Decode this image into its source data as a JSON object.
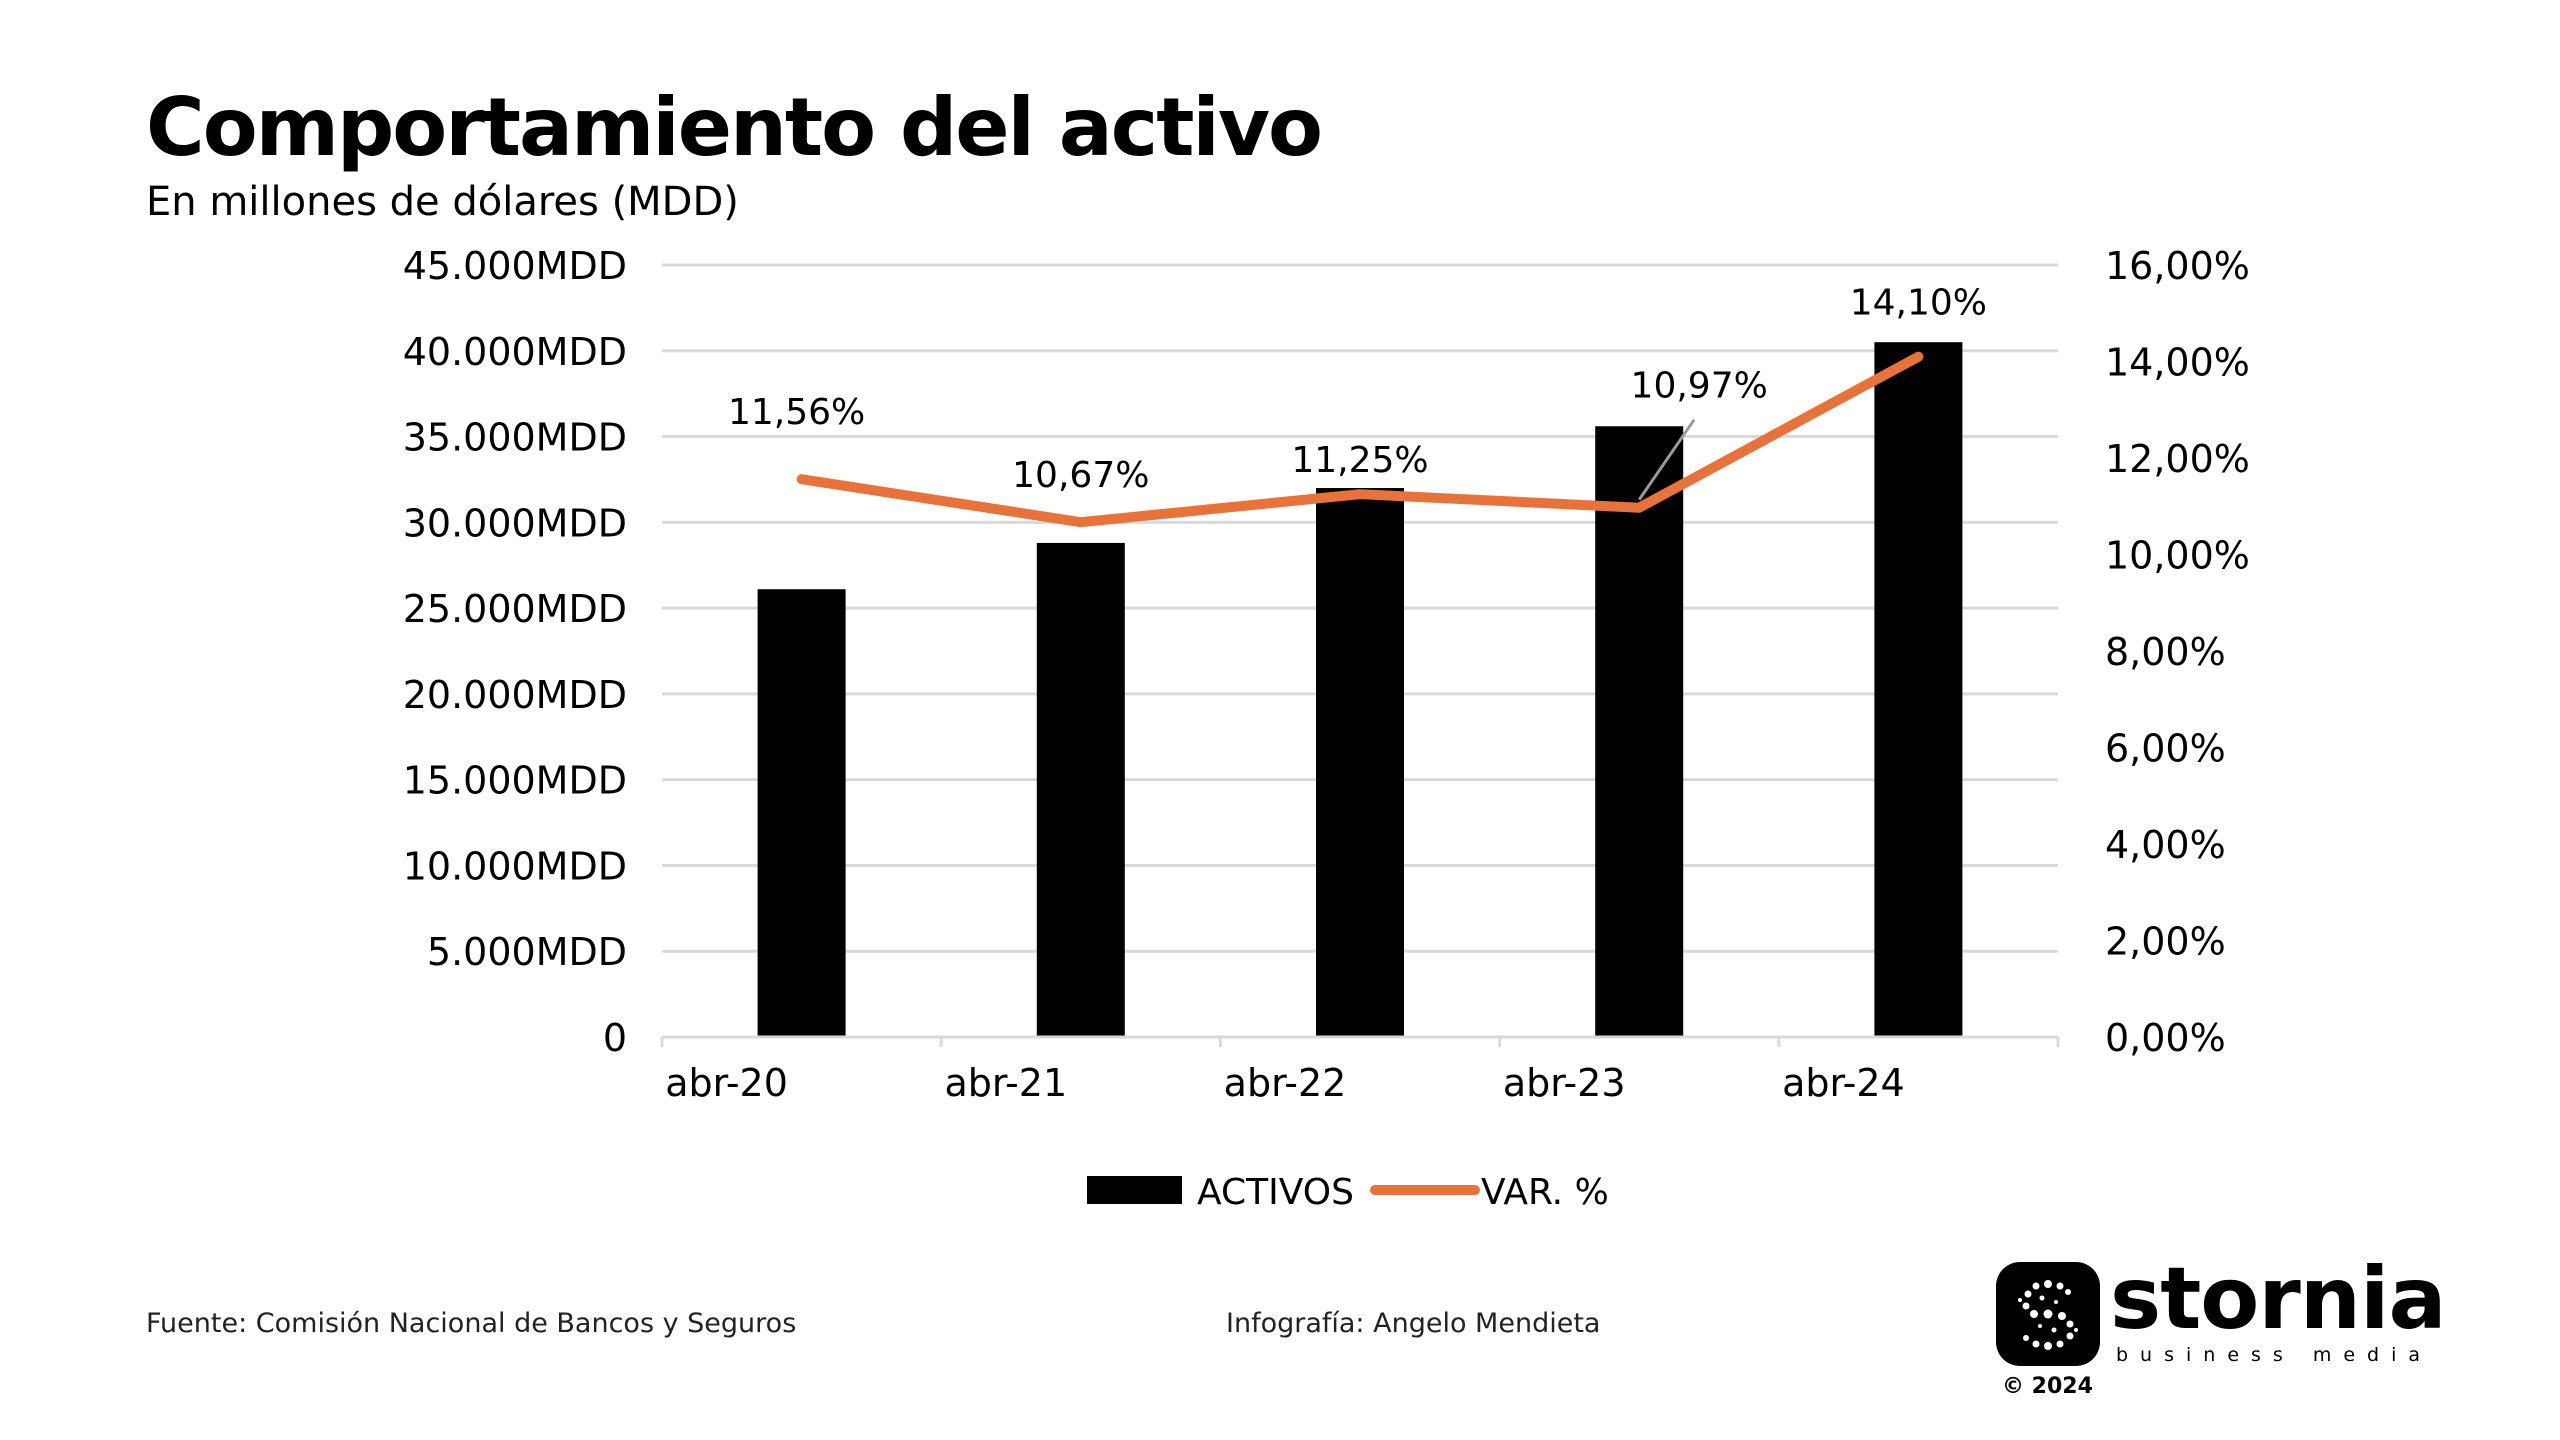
{
  "title": "Comportamiento del activo",
  "subtitle": "En millones de dólares (MDD)",
  "chart_data": {
    "type": "bar",
    "categories": [
      "abr-20",
      "abr-21",
      "abr-22",
      "abr-23",
      "abr-24"
    ],
    "series": [
      {
        "name": "ACTIVOS",
        "type": "bar",
        "axis": "left",
        "color": "#000000",
        "values": [
          26100,
          28800,
          32000,
          35600,
          40500
        ]
      },
      {
        "name": "VAR. %",
        "type": "line",
        "axis": "right",
        "color": "#e8733a",
        "values": [
          11.56,
          10.67,
          11.25,
          10.97,
          14.1
        ],
        "labels": [
          "11,56%",
          "10,67%",
          "11,25%",
          "10,97%",
          "14,10%"
        ]
      }
    ],
    "y_left": {
      "ylim": [
        0,
        45000
      ],
      "ticks": [
        "0",
        "5.000MDD",
        "10.000MDD",
        "15.000MDD",
        "20.000MDD",
        "25.000MDD",
        "30.000MDD",
        "35.000MDD",
        "40.000MDD",
        "45.000MDD"
      ]
    },
    "y_right": {
      "ylim": [
        0,
        16
      ],
      "ticks": [
        "0,00%",
        "2,00%",
        "4,00%",
        "6,00%",
        "8,00%",
        "10,00%",
        "12,00%",
        "14,00%",
        "16,00%"
      ]
    },
    "grid": true,
    "legend_position": "bottom"
  },
  "footer": {
    "source": "Fuente: Comisión Nacional de Bancos y Seguros",
    "credit": "Infografía: Angelo Mendieta"
  },
  "brand": {
    "name": "stornia",
    "tagline": "business media",
    "copyright": "© 2024"
  }
}
